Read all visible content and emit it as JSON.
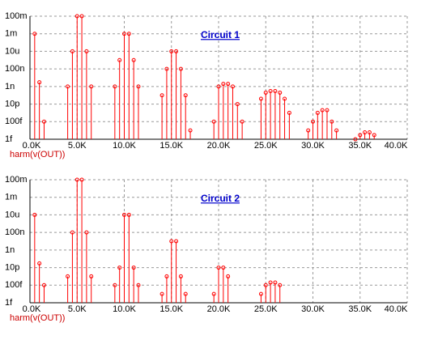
{
  "chart_data": [
    {
      "type": "stem",
      "annotation": "Circuit 1",
      "x_label": "harm(v(OUT))",
      "log_y": true,
      "grid": true,
      "xlim": [
        0,
        40000
      ],
      "xticks": [
        {
          "value": 0,
          "label": "0.0K"
        },
        {
          "value": 5000,
          "label": "5.0K"
        },
        {
          "value": 10000,
          "label": "10.0K"
        },
        {
          "value": 15000,
          "label": "15.0K"
        },
        {
          "value": 20000,
          "label": "20.0K"
        },
        {
          "value": 25000,
          "label": "25.0K"
        },
        {
          "value": 30000,
          "label": "30.0K"
        },
        {
          "value": 35000,
          "label": "35.0K"
        },
        {
          "value": 40000,
          "label": "40.0K"
        }
      ],
      "ylim": [
        1e-15,
        0.1
      ],
      "yticks": [
        {
          "value": 1e-15,
          "label": "1f"
        },
        {
          "value": 1e-13,
          "label": "100f"
        },
        {
          "value": 1e-11,
          "label": "10p"
        },
        {
          "value": 1e-09,
          "label": "1n"
        },
        {
          "value": 1e-07,
          "label": "100n"
        },
        {
          "value": 1e-05,
          "label": "10u"
        },
        {
          "value": 0.001,
          "label": "1m"
        },
        {
          "value": 0.1,
          "label": "100m"
        }
      ],
      "series": [
        {
          "color": "#ff0000",
          "x": [
            500,
            1000,
            1500,
            4000,
            4500,
            5000,
            5500,
            6000,
            6500,
            9000,
            9500,
            10000,
            10500,
            11000,
            11500,
            14000,
            14500,
            15000,
            15500,
            16000,
            16500,
            17000,
            19500,
            20000,
            20500,
            21000,
            21500,
            22000,
            22500,
            24500,
            25000,
            25500,
            26000,
            26500,
            27000,
            27500,
            29500,
            30000,
            30500,
            31000,
            31500,
            32000,
            32500,
            34500,
            35000,
            35500,
            36000,
            36500
          ],
          "values": [
            0.001,
            3e-09,
            1e-13,
            1e-09,
            1e-05,
            0.1,
            0.1,
            1e-05,
            1e-09,
            1e-09,
            1e-06,
            0.001,
            0.001,
            1e-06,
            1e-09,
            1e-10,
            1e-07,
            1e-05,
            1e-05,
            1e-07,
            1e-10,
            1e-14,
            1e-13,
            1e-09,
            2e-09,
            2e-09,
            1e-09,
            1e-11,
            1e-13,
            4e-11,
            2e-10,
            3e-10,
            3e-10,
            2e-10,
            4e-11,
            1e-12,
            1e-14,
            1e-13,
            1e-12,
            2e-12,
            2e-12,
            1e-13,
            1e-14,
            1e-15,
            3e-15,
            6e-15,
            6e-15,
            3e-15
          ]
        }
      ]
    },
    {
      "type": "stem",
      "annotation": "Circuit 2",
      "x_label": "harm(v(OUT))",
      "log_y": true,
      "grid": true,
      "xlim": [
        0,
        40000
      ],
      "xticks": [
        {
          "value": 0,
          "label": "0.0K"
        },
        {
          "value": 5000,
          "label": "5.0K"
        },
        {
          "value": 10000,
          "label": "10.0K"
        },
        {
          "value": 15000,
          "label": "15.0K"
        },
        {
          "value": 20000,
          "label": "20.0K"
        },
        {
          "value": 25000,
          "label": "25.0K"
        },
        {
          "value": 30000,
          "label": "30.0K"
        },
        {
          "value": 35000,
          "label": "35.0K"
        },
        {
          "value": 40000,
          "label": "40.0K"
        }
      ],
      "ylim": [
        1e-15,
        0.1
      ],
      "yticks": [
        {
          "value": 1e-15,
          "label": "1f"
        },
        {
          "value": 1e-13,
          "label": "100f"
        },
        {
          "value": 1e-11,
          "label": "10p"
        },
        {
          "value": 1e-09,
          "label": "1n"
        },
        {
          "value": 1e-07,
          "label": "100n"
        },
        {
          "value": 1e-05,
          "label": "10u"
        },
        {
          "value": 0.001,
          "label": "1m"
        },
        {
          "value": 0.1,
          "label": "100m"
        }
      ],
      "series": [
        {
          "color": "#ff0000",
          "x": [
            500,
            1000,
            1500,
            4000,
            4500,
            5000,
            5500,
            6000,
            6500,
            9000,
            9500,
            10000,
            10500,
            11000,
            11500,
            14000,
            14500,
            15000,
            15500,
            16000,
            16500,
            19500,
            20000,
            20500,
            21000,
            24500,
            25000,
            25500,
            26000,
            26500
          ],
          "values": [
            1e-05,
            3e-11,
            1e-13,
            1e-12,
            1e-07,
            0.1,
            0.1,
            1e-07,
            1e-12,
            1e-13,
            1e-11,
            1e-05,
            1e-05,
            1e-11,
            1e-13,
            1e-14,
            1e-12,
            1e-08,
            1e-08,
            1e-12,
            1e-14,
            1e-14,
            1e-11,
            1e-11,
            1e-12,
            1e-14,
            1e-13,
            2e-13,
            2e-13,
            1e-13
          ]
        }
      ]
    }
  ]
}
